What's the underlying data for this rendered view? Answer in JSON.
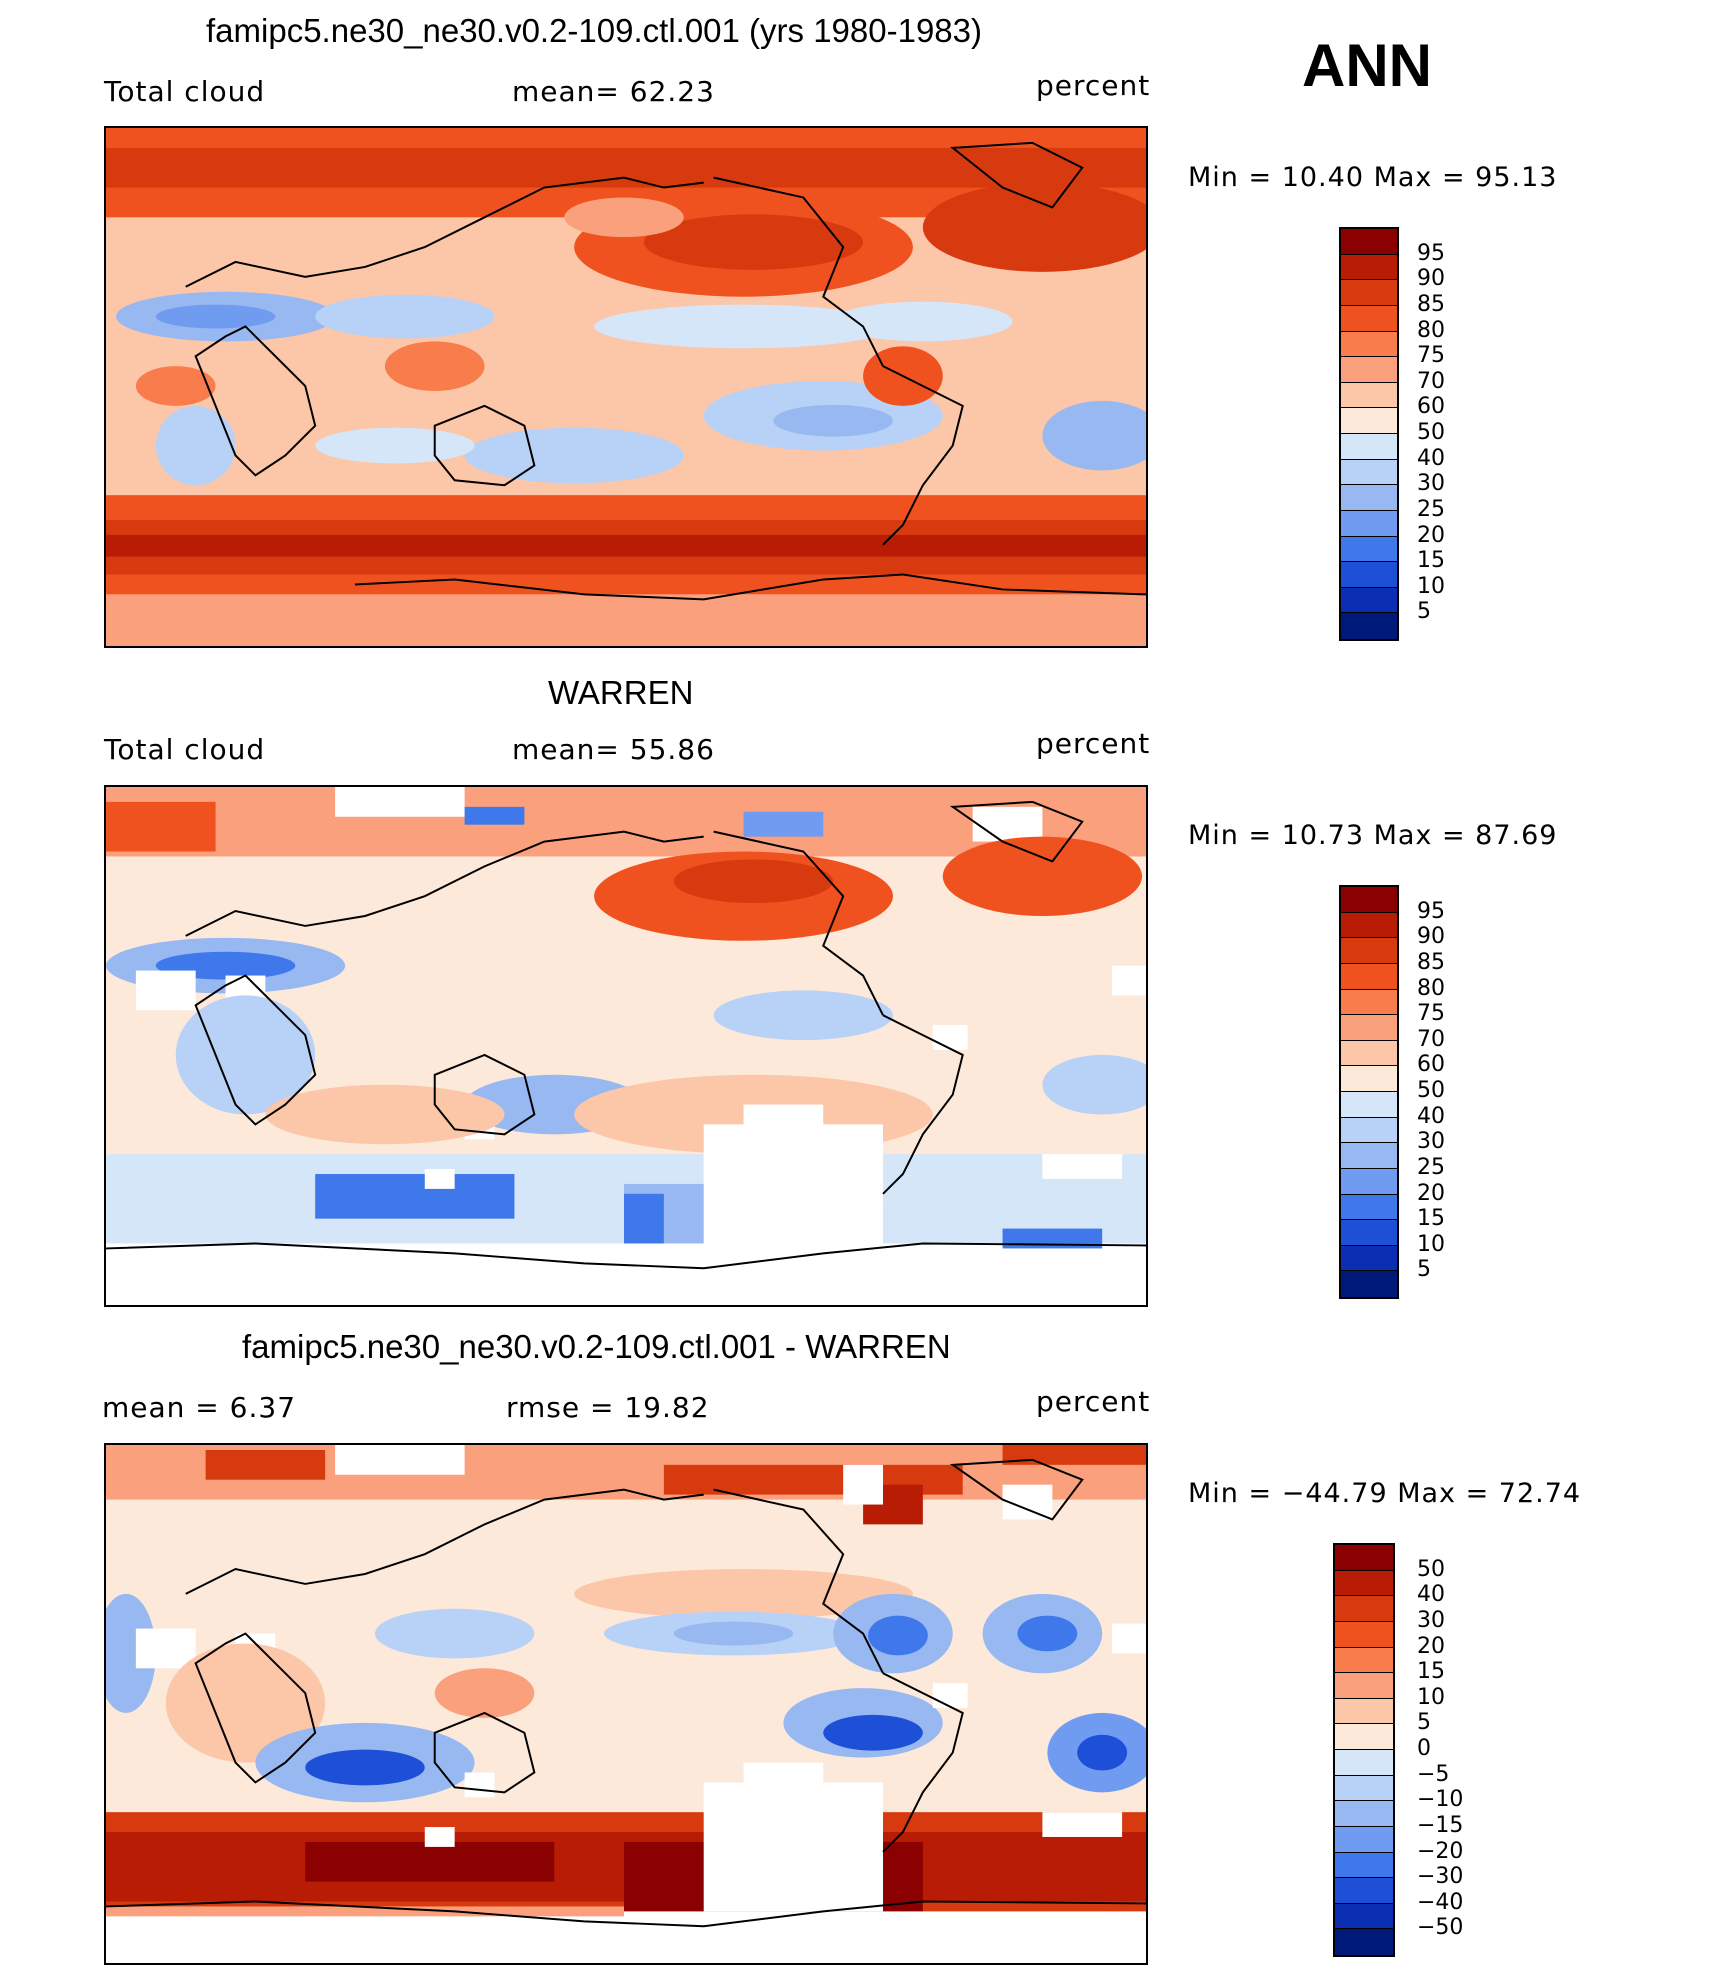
{
  "season": "ANN",
  "panels": [
    {
      "title": "famipc5.ne30_ne30.v0.2-109.ctl.001 (yrs 1980-1983)",
      "left_label": "Total cloud",
      "center_label": "mean=   62.23",
      "right_label": "percent",
      "minmax": "Min  =   10.40  Max  =   95.13",
      "min": 10.4,
      "max": 95.13,
      "mean": 62.23
    },
    {
      "title": "WARREN",
      "left_label": "Total cloud",
      "center_label": "mean=   55.86",
      "right_label": "percent",
      "minmax": "Min  =   10.73  Max  =   87.69",
      "min": 10.73,
      "max": 87.69,
      "mean": 55.86
    },
    {
      "title": "famipc5.ne30_ne30.v0.2-109.ctl.001 - WARREN",
      "left_label": "mean  =     6.37",
      "center_label": "rmse  =    19.82",
      "right_label": "percent",
      "minmax": "Min  = −44.79  Max  =    72.74",
      "min": -44.79,
      "max": 72.74,
      "mean": 6.37,
      "rmse": 19.82
    }
  ],
  "colorbar_abs": {
    "labels": [
      "95",
      "90",
      "85",
      "80",
      "75",
      "70",
      "60",
      "50",
      "40",
      "30",
      "25",
      "20",
      "15",
      "10",
      "5"
    ],
    "colors": [
      "#8b0000",
      "#b81c05",
      "#d83a10",
      "#f0521f",
      "#f97c4c",
      "#fba07c",
      "#fcc6a8",
      "#fde9da",
      "#d6e6f9",
      "#b8d1f6",
      "#98b8f2",
      "#6f9bf0",
      "#3f78eb",
      "#1d4fd7",
      "#0a2fb3",
      "#001a7a"
    ]
  },
  "colorbar_diff": {
    "labels": [
      "50",
      "40",
      "30",
      "20",
      "15",
      "10",
      "5",
      "0",
      "−5",
      "−10",
      "−15",
      "−20",
      "−30",
      "−40",
      "−50"
    ],
    "colors": [
      "#8b0000",
      "#b81c05",
      "#d83a10",
      "#f0521f",
      "#f97c4c",
      "#fba07c",
      "#fcc6a8",
      "#fde9da",
      "#d6e6f9",
      "#b8d1f6",
      "#98b8f2",
      "#6f9bf0",
      "#3f78eb",
      "#1d4fd7",
      "#0a2fb3",
      "#001a7a"
    ]
  }
}
